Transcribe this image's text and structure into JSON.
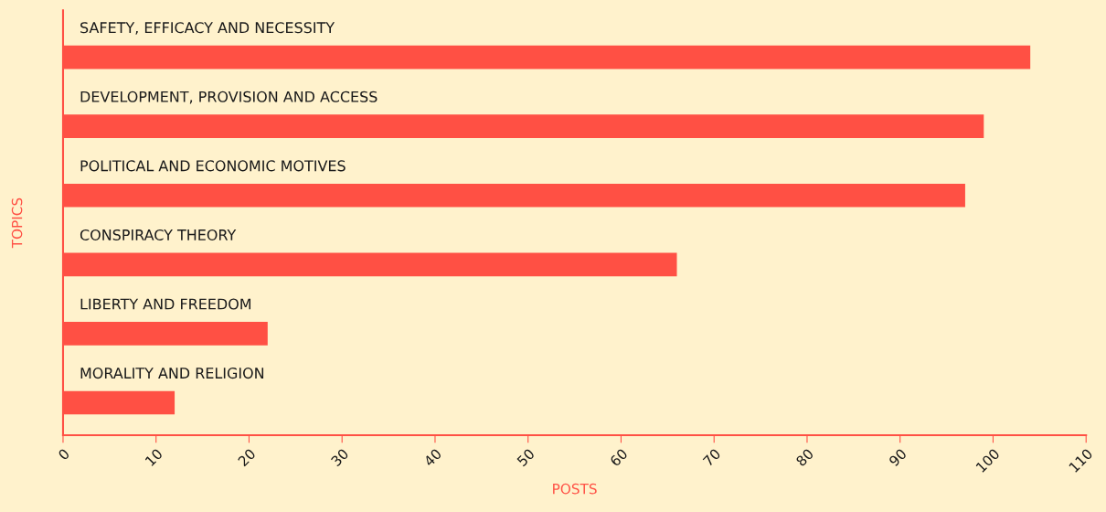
{
  "chart_data": {
    "type": "bar",
    "orientation": "horizontal",
    "xlabel": "POSTS",
    "ylabel": "TOPICS",
    "categories": [
      "SAFETY, EFFICACY AND NECESSITY",
      "DEVELOPMENT, PROVISION AND ACCESS",
      "POLITICAL AND ECONOMIC MOTIVES",
      "CONSPIRACY THEORY",
      "LIBERTY AND FREEDOM",
      "MORALITY AND RELIGION"
    ],
    "values": [
      104,
      99,
      97,
      66,
      22,
      12
    ],
    "color": "#ff5044",
    "xlim": [
      0,
      110
    ],
    "xticks": [
      0,
      10,
      20,
      30,
      40,
      50,
      60,
      70,
      80,
      90,
      100,
      110
    ],
    "grid": false
  }
}
